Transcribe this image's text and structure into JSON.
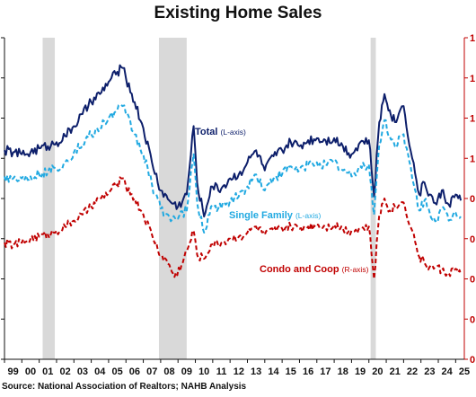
{
  "title": "Existing Home Sales",
  "source": "Source: National Association of Realtors; NAHB Analysis",
  "chart_data": {
    "type": "line",
    "title": "Existing Home Sales",
    "x_tick_labels": [
      "99",
      "00",
      "01",
      "02",
      "03",
      "04",
      "05",
      "06",
      "07",
      "08",
      "09",
      "10",
      "11",
      "12",
      "13",
      "14",
      "15",
      "16",
      "17",
      "18",
      "19",
      "20",
      "21",
      "22",
      "23",
      "24",
      "25"
    ],
    "xlim": [
      1999,
      2025.5
    ],
    "left_tick_labels": [
      "",
      "",
      "",
      "",
      "",
      "",
      "",
      "",
      ""
    ],
    "right_tick_labels": [
      "1",
      "1",
      "1",
      "1",
      "0",
      "0",
      "0",
      "0",
      "0"
    ],
    "ylim_left": [
      0,
      8
    ],
    "ylim_right": [
      0,
      8
    ],
    "recessions": [
      [
        2001.2,
        2001.9
      ],
      [
        2007.9,
        2009.5
      ],
      [
        2020.1,
        2020.4
      ]
    ],
    "colors": {
      "total": "#0d1f6b",
      "single_family": "#21a9e1",
      "condo": "#c00000",
      "recession": "#d9d9d9"
    },
    "series": [
      {
        "key": "total",
        "name": "Total",
        "axis_note": "(L-axis)",
        "style": "solid",
        "points": [
          [
            1999,
            5.2
          ],
          [
            1999.5,
            5.15
          ],
          [
            2000,
            5.1
          ],
          [
            2000.5,
            5.15
          ],
          [
            2001,
            5.25
          ],
          [
            2001.5,
            5.3
          ],
          [
            2002,
            5.4
          ],
          [
            2002.5,
            5.55
          ],
          [
            2003,
            5.8
          ],
          [
            2003.5,
            6.1
          ],
          [
            2004,
            6.4
          ],
          [
            2004.5,
            6.6
          ],
          [
            2005,
            6.9
          ],
          [
            2005.5,
            7.15
          ],
          [
            2005.8,
            7.25
          ],
          [
            2006,
            7.0
          ],
          [
            2006.5,
            6.4
          ],
          [
            2007,
            5.75
          ],
          [
            2007.5,
            4.9
          ],
          [
            2008,
            4.2
          ],
          [
            2008.5,
            3.95
          ],
          [
            2009,
            3.8
          ],
          [
            2009.5,
            4.1
          ],
          [
            2009.9,
            5.8
          ],
          [
            2010.1,
            4.4
          ],
          [
            2010.5,
            3.55
          ],
          [
            2010.9,
            4.3
          ],
          [
            2011.5,
            4.25
          ],
          [
            2012,
            4.5
          ],
          [
            2012.5,
            4.6
          ],
          [
            2013,
            4.9
          ],
          [
            2013.5,
            5.2
          ],
          [
            2014,
            4.7
          ],
          [
            2014.5,
            5.05
          ],
          [
            2015,
            5.2
          ],
          [
            2015.5,
            5.4
          ],
          [
            2016,
            5.3
          ],
          [
            2016.5,
            5.45
          ],
          [
            2017,
            5.5
          ],
          [
            2017.5,
            5.45
          ],
          [
            2018,
            5.5
          ],
          [
            2018.5,
            5.3
          ],
          [
            2019,
            5.1
          ],
          [
            2019.5,
            5.4
          ],
          [
            2020,
            5.45
          ],
          [
            2020.3,
            4.05
          ],
          [
            2020.6,
            5.9
          ],
          [
            2020.9,
            6.6
          ],
          [
            2021.2,
            6.2
          ],
          [
            2021.5,
            5.9
          ],
          [
            2021.8,
            6.2
          ],
          [
            2022,
            6.3
          ],
          [
            2022.5,
            5.0
          ],
          [
            2022.9,
            4.1
          ],
          [
            2023.2,
            4.4
          ],
          [
            2023.5,
            4.1
          ],
          [
            2023.9,
            3.85
          ],
          [
            2024.2,
            4.2
          ],
          [
            2024.6,
            3.85
          ],
          [
            2025,
            4.1
          ],
          [
            2025.3,
            3.95
          ]
        ]
      },
      {
        "key": "single_family",
        "name": "Single Family",
        "axis_note": "(L-axis)",
        "style": "dashed",
        "points": [
          [
            1999,
            4.55
          ],
          [
            1999.5,
            4.5
          ],
          [
            2000,
            4.5
          ],
          [
            2000.5,
            4.55
          ],
          [
            2001,
            4.6
          ],
          [
            2001.5,
            4.65
          ],
          [
            2002,
            4.75
          ],
          [
            2002.5,
            4.9
          ],
          [
            2003,
            5.15
          ],
          [
            2003.5,
            5.35
          ],
          [
            2004,
            5.6
          ],
          [
            2004.5,
            5.75
          ],
          [
            2005,
            6.0
          ],
          [
            2005.5,
            6.2
          ],
          [
            2005.8,
            6.3
          ],
          [
            2006,
            6.1
          ],
          [
            2006.5,
            5.6
          ],
          [
            2007,
            5.1
          ],
          [
            2007.5,
            4.35
          ],
          [
            2008,
            3.75
          ],
          [
            2008.5,
            3.55
          ],
          [
            2009,
            3.5
          ],
          [
            2009.5,
            3.7
          ],
          [
            2009.9,
            5.1
          ],
          [
            2010.1,
            3.9
          ],
          [
            2010.5,
            3.15
          ],
          [
            2010.9,
            3.8
          ],
          [
            2011.5,
            3.75
          ],
          [
            2012,
            3.95
          ],
          [
            2012.5,
            4.05
          ],
          [
            2013,
            4.3
          ],
          [
            2013.5,
            4.6
          ],
          [
            2014,
            4.2
          ],
          [
            2014.5,
            4.5
          ],
          [
            2015,
            4.6
          ],
          [
            2015.5,
            4.8
          ],
          [
            2016,
            4.7
          ],
          [
            2016.5,
            4.85
          ],
          [
            2017,
            4.9
          ],
          [
            2017.5,
            4.85
          ],
          [
            2018,
            4.9
          ],
          [
            2018.5,
            4.7
          ],
          [
            2019,
            4.55
          ],
          [
            2019.5,
            4.8
          ],
          [
            2020,
            4.85
          ],
          [
            2020.3,
            3.6
          ],
          [
            2020.6,
            5.35
          ],
          [
            2020.9,
            5.95
          ],
          [
            2021.2,
            5.55
          ],
          [
            2021.5,
            5.3
          ],
          [
            2021.8,
            5.55
          ],
          [
            2022,
            5.6
          ],
          [
            2022.5,
            4.5
          ],
          [
            2022.9,
            3.7
          ],
          [
            2023.2,
            3.95
          ],
          [
            2023.5,
            3.65
          ],
          [
            2023.9,
            3.45
          ],
          [
            2024.2,
            3.75
          ],
          [
            2024.6,
            3.45
          ],
          [
            2025,
            3.65
          ],
          [
            2025.3,
            3.55
          ]
        ]
      },
      {
        "key": "condo",
        "name": "Condo and Coop",
        "axis_note": "(R-axis)",
        "style": "dashed",
        "points": [
          [
            1999,
            2.9
          ],
          [
            1999.5,
            2.85
          ],
          [
            2000,
            2.9
          ],
          [
            2000.5,
            3.0
          ],
          [
            2001,
            3.05
          ],
          [
            2001.5,
            3.1
          ],
          [
            2002,
            3.2
          ],
          [
            2002.5,
            3.3
          ],
          [
            2003,
            3.45
          ],
          [
            2003.5,
            3.6
          ],
          [
            2004,
            3.8
          ],
          [
            2004.5,
            4.0
          ],
          [
            2005,
            4.15
          ],
          [
            2005.5,
            4.35
          ],
          [
            2005.8,
            4.5
          ],
          [
            2006,
            4.3
          ],
          [
            2006.5,
            4.0
          ],
          [
            2007,
            3.6
          ],
          [
            2007.5,
            3.1
          ],
          [
            2008,
            2.6
          ],
          [
            2008.5,
            2.35
          ],
          [
            2008.8,
            2.05
          ],
          [
            2009.2,
            2.35
          ],
          [
            2009.6,
            2.8
          ],
          [
            2009.9,
            3.2
          ],
          [
            2010.1,
            2.6
          ],
          [
            2010.5,
            2.5
          ],
          [
            2010.9,
            2.85
          ],
          [
            2011.5,
            2.9
          ],
          [
            2012,
            3.0
          ],
          [
            2012.5,
            3.05
          ],
          [
            2013,
            3.15
          ],
          [
            2013.5,
            3.3
          ],
          [
            2014,
            3.1
          ],
          [
            2014.5,
            3.2
          ],
          [
            2015,
            3.25
          ],
          [
            2015.5,
            3.3
          ],
          [
            2016,
            3.25
          ],
          [
            2016.5,
            3.3
          ],
          [
            2017,
            3.35
          ],
          [
            2017.5,
            3.3
          ],
          [
            2018,
            3.35
          ],
          [
            2018.5,
            3.25
          ],
          [
            2019,
            3.2
          ],
          [
            2019.5,
            3.25
          ],
          [
            2020,
            3.3
          ],
          [
            2020.3,
            2.0
          ],
          [
            2020.6,
            3.6
          ],
          [
            2020.9,
            4.0
          ],
          [
            2021.2,
            3.7
          ],
          [
            2021.5,
            3.8
          ],
          [
            2021.8,
            3.85
          ],
          [
            2022,
            3.9
          ],
          [
            2022.5,
            3.2
          ],
          [
            2022.9,
            2.55
          ],
          [
            2023.2,
            2.4
          ],
          [
            2023.5,
            2.3
          ],
          [
            2023.9,
            2.3
          ],
          [
            2024.2,
            2.2
          ],
          [
            2024.6,
            2.15
          ],
          [
            2025,
            2.25
          ],
          [
            2025.3,
            2.1
          ]
        ]
      }
    ],
    "annotations": [
      {
        "series": "total",
        "label": "Total",
        "note": "(L-axis)"
      },
      {
        "series": "single_family",
        "label": "Single Family",
        "note": "(L-axis)"
      },
      {
        "series": "condo",
        "label": "Condo and Coop",
        "note": "(R-axis)"
      }
    ]
  }
}
